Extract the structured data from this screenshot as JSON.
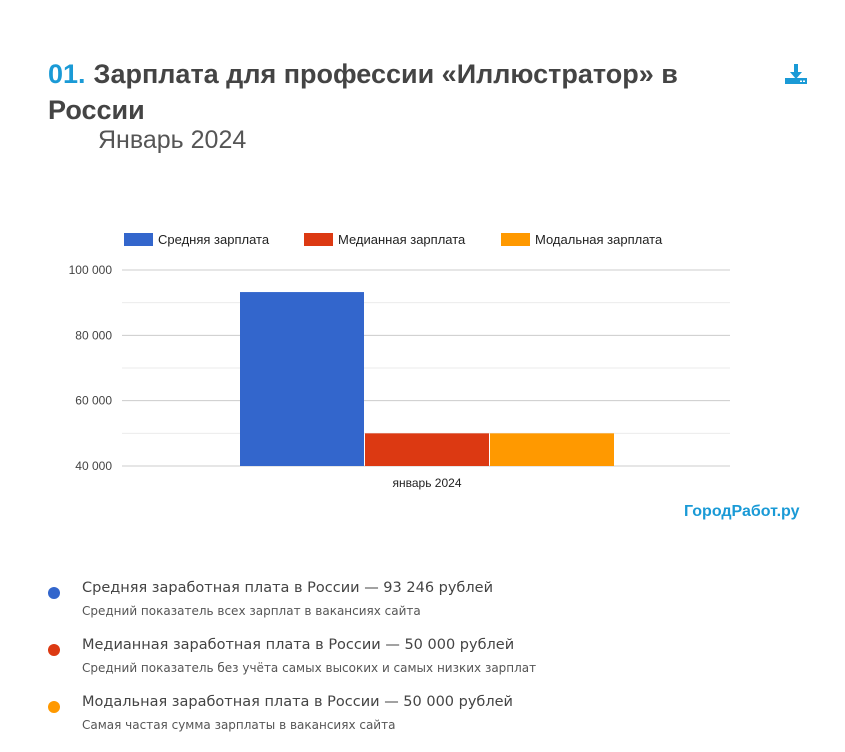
{
  "header": {
    "number": "01.",
    "title": "Зарплата для профессии «Иллюстратор» в России",
    "subtitle": "Январь 2024",
    "download_icon": "download-icon"
  },
  "brand": "ГородРабот.ру",
  "colors": {
    "accent": "#1a9ad6",
    "avg": "#3366cc",
    "median": "#dc3912",
    "modal": "#ff9900"
  },
  "chart_data": {
    "type": "bar",
    "categories": [
      "январь 2024"
    ],
    "series": [
      {
        "name": "Средняя зарплата",
        "values": [
          93246
        ],
        "color": "#3366cc"
      },
      {
        "name": "Медианная зарплата",
        "values": [
          50000
        ],
        "color": "#dc3912"
      },
      {
        "name": "Модальная зарплата",
        "values": [
          50000
        ],
        "color": "#ff9900"
      }
    ],
    "yticks": [
      "40 000",
      "60 000",
      "80 000",
      "100 000"
    ],
    "ylim": [
      40000,
      100000
    ],
    "grid": true,
    "legend": "top"
  },
  "summary": [
    {
      "title": "Средняя заработная плата в России — 93 246 рублей",
      "desc": "Средний показатель всех зарплат в вакансиях сайта",
      "color": "#3366cc"
    },
    {
      "title": "Медианная заработная плата в России — 50 000 рублей",
      "desc": "Средний показатель без учёта самых высоких и самых низких зарплат",
      "color": "#dc3912"
    },
    {
      "title": "Модальная заработная плата в России — 50 000 рублей",
      "desc": "Самая частая сумма зарплаты в вакансиях сайта",
      "color": "#ff9900"
    }
  ]
}
